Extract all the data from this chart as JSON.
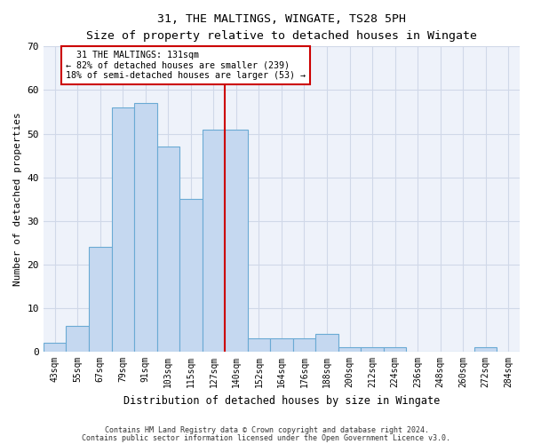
{
  "title1": "31, THE MALTINGS, WINGATE, TS28 5PH",
  "title2": "Size of property relative to detached houses in Wingate",
  "xlabel": "Distribution of detached houses by size in Wingate",
  "ylabel": "Number of detached properties",
  "bar_labels": [
    "43sqm",
    "55sqm",
    "67sqm",
    "79sqm",
    "91sqm",
    "103sqm",
    "115sqm",
    "127sqm",
    "140sqm",
    "152sqm",
    "164sqm",
    "176sqm",
    "188sqm",
    "200sqm",
    "212sqm",
    "224sqm",
    "236sqm",
    "248sqm",
    "260sqm",
    "272sqm",
    "284sqm"
  ],
  "bar_heights": [
    2,
    6,
    24,
    56,
    57,
    47,
    35,
    51,
    51,
    3,
    3,
    3,
    4,
    1,
    1,
    1,
    0,
    0,
    0,
    1,
    0
  ],
  "bar_color": "#c5d8f0",
  "bar_edge_color": "#6aaad4",
  "vline_x": 7.5,
  "vline_color": "#cc0000",
  "annotation_text": "  31 THE MALTINGS: 131sqm\n← 82% of detached houses are smaller (239)\n18% of semi-detached houses are larger (53) →",
  "annotation_box_color": "#ffffff",
  "annotation_box_edge_color": "#cc0000",
  "ylim": [
    0,
    70
  ],
  "yticks": [
    0,
    10,
    20,
    30,
    40,
    50,
    60,
    70
  ],
  "grid_color": "#d0d8e8",
  "background_color": "#eef2fa",
  "footer1": "Contains HM Land Registry data © Crown copyright and database right 2024.",
  "footer2": "Contains public sector information licensed under the Open Government Licence v3.0."
}
